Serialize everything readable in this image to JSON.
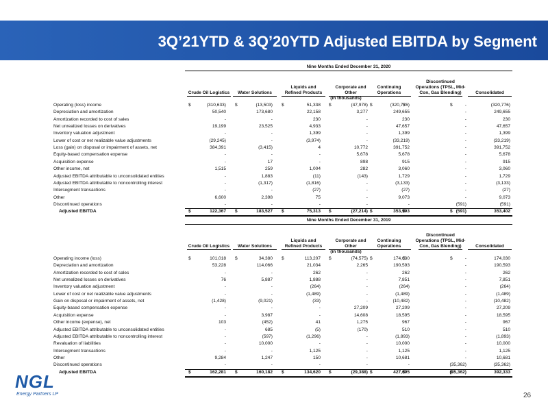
{
  "header": {
    "title": "3Q’21YTD & 3Q’20YTD Adjusted EBITDA by Segment"
  },
  "tables": [
    {
      "period": "Nine Months Ended December 31, 2020",
      "columns": [
        [
          "Crude Oil Logistics"
        ],
        [
          "Water Solutions"
        ],
        [
          "Liquids and",
          "Refined Products"
        ],
        [
          "Corporate and",
          "Other"
        ],
        [
          "Continuing",
          "Operations"
        ],
        [
          "Discontinued",
          "Operations (TPSL, Mid-",
          "Con, Gas Blending)"
        ],
        [
          "Consolidated"
        ]
      ],
      "unit_note": "(in thousands)",
      "rows": [
        {
          "label": "Operating (loss) income",
          "currency": "$",
          "cells": [
            "(310,633)",
            "(13,503)",
            "51,338",
            "(47,978)",
            "(320,776)",
            "-",
            "(320,776)"
          ]
        },
        {
          "label": "Depreciation and amortization",
          "cells": [
            "50,540",
            "173,680",
            "22,158",
            "3,277",
            "249,655",
            "-",
            "249,655"
          ]
        },
        {
          "label": "Amortization recorded to cost of sales",
          "cells": [
            "-",
            "-",
            "230",
            "-",
            "230",
            "-",
            "230"
          ]
        },
        {
          "label": "Net unrealized losses on derivatives",
          "cells": [
            "19,199",
            "23,525",
            "4,933",
            "-",
            "47,657",
            "-",
            "47,657"
          ]
        },
        {
          "label": "Inventory valuation adjustment",
          "cells": [
            "-",
            "-",
            "1,399",
            "-",
            "1,399",
            "-",
            "1,399"
          ]
        },
        {
          "label": "Lower of cost or net realizable value adjustments",
          "cells": [
            "(29,245)",
            "-",
            "(3,974)",
            "-",
            "(33,219)",
            "-",
            "(33,219)"
          ]
        },
        {
          "label": "Loss (gain) on disposal or impairment of assets, net",
          "cells": [
            "384,391",
            "(3,415)",
            "4",
            "10,772",
            "391,752",
            "-",
            "391,752"
          ]
        },
        {
          "label": "Equity-based compensation expense",
          "cells": [
            "-",
            "-",
            "-",
            "5,678",
            "5,678",
            "-",
            "5,678"
          ]
        },
        {
          "label": "Acquisition expense",
          "cells": [
            "-",
            "17",
            "-",
            "898",
            "915",
            "-",
            "915"
          ]
        },
        {
          "label": "Other income, net",
          "cells": [
            "1,515",
            "259",
            "1,004",
            "282",
            "3,060",
            "-",
            "3,060"
          ]
        },
        {
          "label": "Adjusted EBITDA attributable to unconsolidated entities",
          "cells": [
            "-",
            "1,883",
            "(11)",
            "(143)",
            "1,729",
            "-",
            "1,729"
          ]
        },
        {
          "label": "Adjusted EBITDA attributable to noncontrolling interest",
          "cells": [
            "-",
            "(1,317)",
            "(1,816)",
            "-",
            "(3,133)",
            "-",
            "(3,133)"
          ]
        },
        {
          "label": "Intersegment transactions",
          "cells": [
            "-",
            "-",
            "(27)",
            "-",
            "(27)",
            "-",
            "(27)"
          ]
        },
        {
          "label": "Other",
          "cells": [
            "6,600",
            "2,398",
            "75",
            "-",
            "9,073",
            "-",
            "9,073"
          ]
        },
        {
          "label": "Discontinued operations",
          "cells": [
            "-",
            "-",
            "-",
            "-",
            "-",
            "(591)",
            "(591)"
          ]
        }
      ],
      "total": {
        "label": "Adjusted EBITDA",
        "currency": "$",
        "cells": [
          "122,367",
          "183,527",
          "75,313",
          "(27,214)",
          "353,993",
          "(591)",
          "353,402"
        ]
      }
    },
    {
      "period": "Nine Months Ended December 31, 2019",
      "columns": [
        [
          "Crude Oil Logistics"
        ],
        [
          "Water Solutions"
        ],
        [
          "Liquids and",
          "Refined Products"
        ],
        [
          "Corporate and",
          "Other"
        ],
        [
          "Continuing",
          "Operations"
        ],
        [
          "Discontinued",
          "Operations (TPSL, Mid-",
          "Con, Gas Blending)"
        ],
        [
          "Consolidated"
        ]
      ],
      "unit_note": "(in thousands)",
      "rows": [
        {
          "label": "Operating income (loss)",
          "currency": "$",
          "cells": [
            "101,018",
            "34,380",
            "113,207",
            "(74,575)",
            "174,030",
            "-",
            "174,030"
          ]
        },
        {
          "label": "Depreciation and amortization",
          "cells": [
            "53,228",
            "114,066",
            "21,034",
            "2,265",
            "190,593",
            "-",
            "190,593"
          ]
        },
        {
          "label": "Amortization recorded to cost of sales",
          "cells": [
            "-",
            "-",
            "262",
            "-",
            "262",
            "-",
            "262"
          ]
        },
        {
          "label": "Net unrealized losses on derivatives",
          "cells": [
            "76",
            "5,887",
            "1,888",
            "-",
            "7,851",
            "-",
            "7,851"
          ]
        },
        {
          "label": "Inventory valuation adjustment",
          "cells": [
            "-",
            "-",
            "(264)",
            "-",
            "(264)",
            "-",
            "(264)"
          ]
        },
        {
          "label": "Lower of cost or net realizable value adjustments",
          "cells": [
            "-",
            "-",
            "(1,489)",
            "-",
            "(1,489)",
            "-",
            "(1,489)"
          ]
        },
        {
          "label": "Gain on disposal or impairment of assets, net",
          "cells": [
            "(1,428)",
            "(9,021)",
            "(33)",
            "-",
            "(10,482)",
            "-",
            "(10,482)"
          ]
        },
        {
          "label": "Equity-based compensation expense",
          "cells": [
            "-",
            "-",
            "-",
            "27,209",
            "27,209",
            "-",
            "27,209"
          ]
        },
        {
          "label": "Acquisition expense",
          "cells": [
            "-",
            "3,987",
            "-",
            "14,608",
            "18,595",
            "-",
            "18,595"
          ]
        },
        {
          "label": "Other income (expense), net",
          "cells": [
            "103",
            "(452)",
            "41",
            "1,275",
            "967",
            "-",
            "967"
          ]
        },
        {
          "label": "Adjusted EBITDA attributable to unconsolidated entities",
          "cells": [
            "-",
            "685",
            "(5)",
            "(170)",
            "510",
            "-",
            "510"
          ]
        },
        {
          "label": "Adjusted EBITDA attributable to noncontrolling interest",
          "cells": [
            "-",
            "(597)",
            "(1,296)",
            "-",
            "(1,893)",
            "-",
            "(1,893)"
          ]
        },
        {
          "label": "Revaluation of liabilities",
          "cells": [
            "-",
            "10,000",
            "-",
            "-",
            "10,000",
            "-",
            "10,000"
          ]
        },
        {
          "label": "Intersegment transactions",
          "cells": [
            "-",
            "-",
            "1,125",
            "-",
            "1,125",
            "-",
            "1,125"
          ]
        },
        {
          "label": "Other",
          "cells": [
            "9,284",
            "1,247",
            "150",
            "-",
            "10,681",
            "-",
            "10,681"
          ]
        },
        {
          "label": "Discontinued operations",
          "cells": [
            "-",
            "-",
            "-",
            "-",
            "-",
            "(35,362)",
            "(35,362)"
          ]
        }
      ],
      "total": {
        "label": "Adjusted EBITDA",
        "currency": "$",
        "cells": [
          "162,281",
          "160,182",
          "134,620",
          "(29,388)",
          "427,695",
          "(35,362)",
          "392,333"
        ]
      }
    }
  ],
  "footer": {
    "logo": "NGL",
    "logo_tagline": "Energy Partners LP",
    "page_number": "26"
  }
}
